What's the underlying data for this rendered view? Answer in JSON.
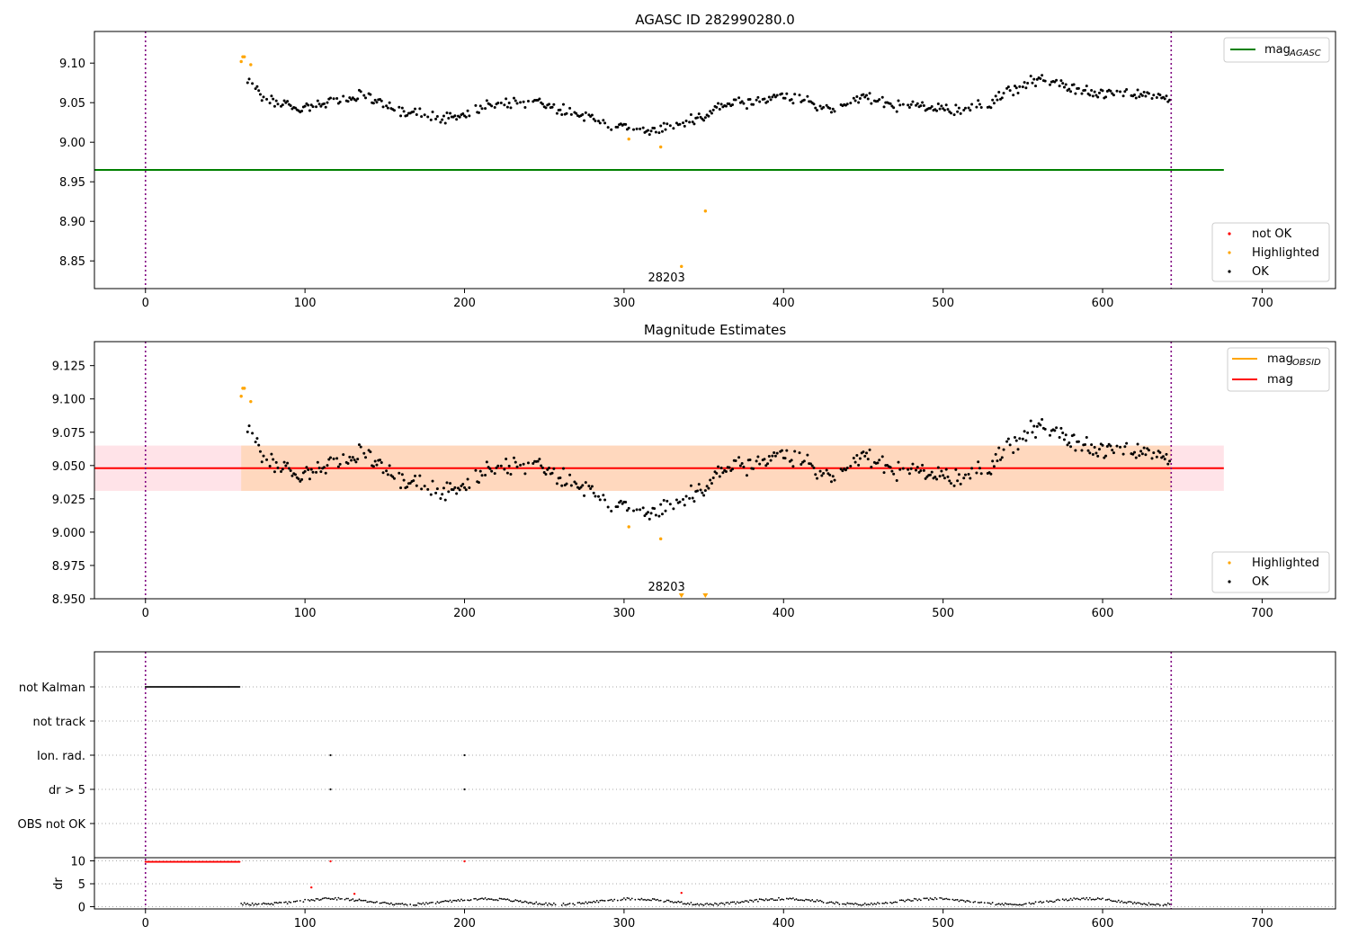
{
  "chart_data": [
    {
      "type": "scatter",
      "title": "AGASC ID 282990280.0",
      "xlim": [
        -32,
        746
      ],
      "ylim": [
        8.815,
        9.14
      ],
      "xticks": [
        "0",
        "100",
        "200",
        "300",
        "400",
        "500",
        "600",
        "700"
      ],
      "yticks": [
        "8.85",
        "8.90",
        "8.95",
        "9.00",
        "9.05",
        "9.10"
      ],
      "hlines": [
        {
          "name": "mag_AGASC",
          "y": 8.965,
          "x_range": [
            -32,
            676
          ],
          "color": "#008000"
        }
      ],
      "vlines": [
        0,
        643
      ],
      "annotations": [
        {
          "text": "28203",
          "x": 321,
          "y": 8.83
        }
      ],
      "highlighted": [
        [
          60,
          9.102
        ],
        [
          61,
          9.108
        ],
        [
          62,
          9.108
        ],
        [
          66,
          9.098
        ],
        [
          303,
          9.004
        ],
        [
          323,
          8.994
        ],
        [
          336,
          8.843
        ],
        [
          351,
          8.913
        ]
      ],
      "ok_points": [
        [
          65,
          9.075
        ],
        [
          70,
          9.065
        ],
        [
          75,
          9.058
        ],
        [
          80,
          9.055
        ],
        [
          85,
          9.05
        ],
        [
          90,
          9.045
        ],
        [
          95,
          9.042
        ],
        [
          100,
          9.045
        ],
        [
          110,
          9.048
        ],
        [
          120,
          9.052
        ],
        [
          130,
          9.055
        ],
        [
          140,
          9.058
        ],
        [
          150,
          9.045
        ],
        [
          160,
          9.035
        ],
        [
          170,
          9.04
        ],
        [
          180,
          9.032
        ],
        [
          190,
          9.03
        ],
        [
          200,
          9.035
        ],
        [
          210,
          9.042
        ],
        [
          220,
          9.048
        ],
        [
          230,
          9.05
        ],
        [
          240,
          9.052
        ],
        [
          250,
          9.048
        ],
        [
          260,
          9.042
        ],
        [
          270,
          9.038
        ],
        [
          280,
          9.03
        ],
        [
          290,
          9.022
        ],
        [
          300,
          9.018
        ],
        [
          310,
          9.015
        ],
        [
          320,
          9.018
        ],
        [
          330,
          9.02
        ],
        [
          340,
          9.025
        ],
        [
          350,
          9.03
        ],
        [
          360,
          9.045
        ],
        [
          370,
          9.052
        ],
        [
          380,
          9.05
        ],
        [
          390,
          9.055
        ],
        [
          400,
          9.058
        ],
        [
          410,
          9.055
        ],
        [
          420,
          9.045
        ],
        [
          430,
          9.04
        ],
        [
          440,
          9.045
        ],
        [
          450,
          9.058
        ],
        [
          460,
          9.05
        ],
        [
          470,
          9.045
        ],
        [
          480,
          9.05
        ],
        [
          490,
          9.045
        ],
        [
          500,
          9.04
        ],
        [
          510,
          9.042
        ],
        [
          520,
          9.045
        ],
        [
          530,
          9.048
        ],
        [
          540,
          9.065
        ],
        [
          550,
          9.07
        ],
        [
          560,
          9.08
        ],
        [
          570,
          9.075
        ],
        [
          580,
          9.068
        ],
        [
          590,
          9.065
        ],
        [
          600,
          9.062
        ],
        [
          610,
          9.065
        ],
        [
          620,
          9.063
        ],
        [
          630,
          9.06
        ],
        [
          640,
          9.052
        ]
      ],
      "legend_top": [
        {
          "label": "mag",
          "sub": "AGASC",
          "color": "#008000"
        }
      ],
      "legend_bottom": [
        {
          "label": "not OK",
          "color": "#ff0000"
        },
        {
          "label": "Highlighted",
          "color": "#ffa500"
        },
        {
          "label": "OK",
          "color": "#000000"
        }
      ]
    },
    {
      "type": "scatter",
      "title": "Magnitude Estimates",
      "xlim": [
        -32,
        746
      ],
      "ylim": [
        8.95,
        9.143
      ],
      "xticks": [
        "0",
        "100",
        "200",
        "300",
        "400",
        "500",
        "600",
        "700"
      ],
      "yticks": [
        "8.950",
        "8.975",
        "9.000",
        "9.025",
        "9.050",
        "9.075",
        "9.100",
        "9.125"
      ],
      "hlines": [
        {
          "name": "mag",
          "y": 9.048,
          "x_range": [
            -32,
            676
          ],
          "color": "#ff0000"
        }
      ],
      "bands": [
        {
          "y": [
            9.031,
            9.065
          ],
          "x": [
            -32,
            676
          ],
          "color": "#ffc0cb"
        },
        {
          "y": [
            9.031,
            9.065
          ],
          "x": [
            60,
            643
          ],
          "color": "#ffa500"
        }
      ],
      "vlines": [
        0,
        643
      ],
      "annotations": [
        {
          "text": "28203",
          "x": 321,
          "y": 8.958
        }
      ],
      "highlighted": [
        [
          60,
          9.102
        ],
        [
          61,
          9.108
        ],
        [
          62,
          9.108
        ],
        [
          66,
          9.098
        ],
        [
          303,
          9.004
        ],
        [
          323,
          8.995
        ]
      ],
      "clipped_markers": [
        336,
        351
      ],
      "legend_top": [
        {
          "label": "mag",
          "sub": "OBSID",
          "color": "#ffa500"
        },
        {
          "label": "mag",
          "sub": "",
          "color": "#ff0000"
        }
      ],
      "legend_bottom": [
        {
          "label": "Highlighted",
          "color": "#ffa500"
        },
        {
          "label": "OK",
          "color": "#000000"
        }
      ]
    },
    {
      "type": "scatter",
      "title": "",
      "xlim": [
        -32,
        746
      ],
      "xticks": [
        "0",
        "100",
        "200",
        "300",
        "400",
        "500",
        "600",
        "700"
      ],
      "flag_rows": [
        "not Kalman",
        "not track",
        "Ion. rad.",
        "dr > 5",
        "OBS not OK"
      ],
      "flag_points": [
        {
          "row": "not Kalman",
          "x_range": [
            0,
            59
          ]
        },
        {
          "row": "Ion. rad.",
          "x": [
            116,
            200
          ]
        },
        {
          "row": "dr > 5",
          "x": [
            116,
            200
          ]
        }
      ],
      "dr_ylabel": "dr",
      "dr_yticks": [
        "0",
        "5",
        "10"
      ],
      "dr_ylim": [
        -0.5,
        10.5
      ],
      "dr_red_points": [
        [
          104,
          4.2
        ],
        [
          116,
          9.9
        ],
        [
          131,
          2.8
        ],
        [
          200,
          9.9
        ],
        [
          336,
          3.0
        ]
      ],
      "vlines": [
        0,
        643
      ]
    }
  ]
}
